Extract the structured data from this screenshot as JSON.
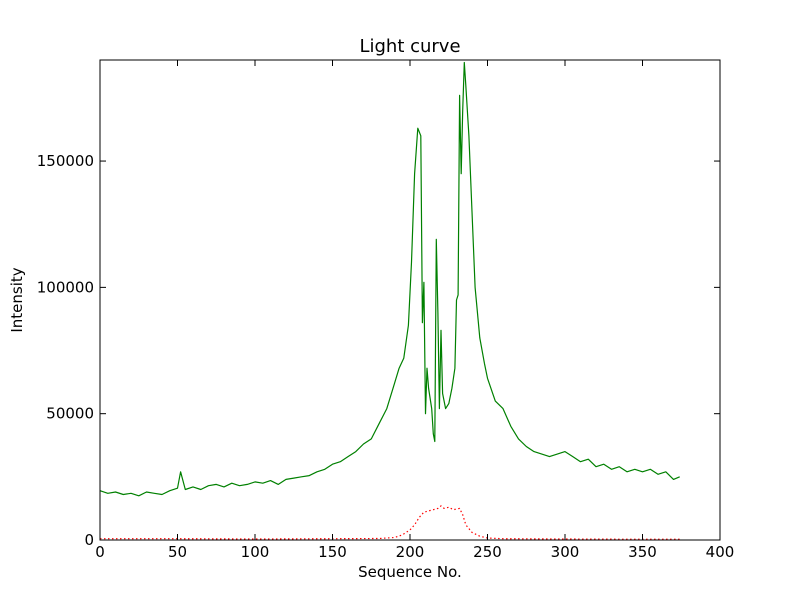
{
  "chart_data": {
    "type": "line",
    "title": "Light curve",
    "xlabel": "Sequence No.",
    "ylabel": "Intensity",
    "xlim": [
      0,
      400
    ],
    "ylim": [
      0,
      190000
    ],
    "x_ticks": [
      0,
      50,
      100,
      150,
      200,
      250,
      300,
      350,
      400
    ],
    "y_ticks": [
      0,
      50000,
      100000,
      150000
    ],
    "x_tick_labels": [
      "0",
      "50",
      "100",
      "150",
      "200",
      "250",
      "300",
      "350",
      "400"
    ],
    "y_tick_labels": [
      "0",
      "50000",
      "100000",
      "150000"
    ],
    "grid": false,
    "legend": "none",
    "series": [
      {
        "color": "#008000",
        "style": "solid",
        "points": [
          [
            0,
            19500
          ],
          [
            5,
            18500
          ],
          [
            10,
            19000
          ],
          [
            15,
            18000
          ],
          [
            20,
            18500
          ],
          [
            25,
            17500
          ],
          [
            30,
            19000
          ],
          [
            35,
            18500
          ],
          [
            40,
            18000
          ],
          [
            45,
            19500
          ],
          [
            50,
            20500
          ],
          [
            52,
            27000
          ],
          [
            55,
            20000
          ],
          [
            60,
            21000
          ],
          [
            65,
            20000
          ],
          [
            70,
            21500
          ],
          [
            75,
            22000
          ],
          [
            80,
            21000
          ],
          [
            85,
            22500
          ],
          [
            90,
            21500
          ],
          [
            95,
            22000
          ],
          [
            100,
            23000
          ],
          [
            105,
            22500
          ],
          [
            110,
            23500
          ],
          [
            115,
            22000
          ],
          [
            120,
            24000
          ],
          [
            125,
            24500
          ],
          [
            130,
            25000
          ],
          [
            135,
            25500
          ],
          [
            140,
            27000
          ],
          [
            145,
            28000
          ],
          [
            150,
            30000
          ],
          [
            155,
            31000
          ],
          [
            160,
            33000
          ],
          [
            165,
            35000
          ],
          [
            170,
            38000
          ],
          [
            175,
            40000
          ],
          [
            180,
            46000
          ],
          [
            185,
            52000
          ],
          [
            190,
            62000
          ],
          [
            193,
            68000
          ],
          [
            196,
            72000
          ],
          [
            199,
            85000
          ],
          [
            201,
            110000
          ],
          [
            203,
            145000
          ],
          [
            205,
            163000
          ],
          [
            207,
            160000
          ],
          [
            208,
            86000
          ],
          [
            209,
            102000
          ],
          [
            210,
            50000
          ],
          [
            211,
            68000
          ],
          [
            212,
            60000
          ],
          [
            214,
            52000
          ],
          [
            215,
            42000
          ],
          [
            216,
            39000
          ],
          [
            217,
            119000
          ],
          [
            218,
            90000
          ],
          [
            219,
            52000
          ],
          [
            220,
            83000
          ],
          [
            221,
            58000
          ],
          [
            223,
            52000
          ],
          [
            225,
            54000
          ],
          [
            227,
            60000
          ],
          [
            229,
            68000
          ],
          [
            230,
            95000
          ],
          [
            231,
            97000
          ],
          [
            232,
            176000
          ],
          [
            233,
            145000
          ],
          [
            234,
            170000
          ],
          [
            235,
            189000
          ],
          [
            236,
            180000
          ],
          [
            238,
            160000
          ],
          [
            240,
            130000
          ],
          [
            242,
            100000
          ],
          [
            245,
            80000
          ],
          [
            248,
            70000
          ],
          [
            250,
            64000
          ],
          [
            255,
            55000
          ],
          [
            260,
            52000
          ],
          [
            265,
            45000
          ],
          [
            270,
            40000
          ],
          [
            275,
            37000
          ],
          [
            280,
            35000
          ],
          [
            285,
            34000
          ],
          [
            290,
            33000
          ],
          [
            295,
            34000
          ],
          [
            300,
            35000
          ],
          [
            305,
            33000
          ],
          [
            310,
            31000
          ],
          [
            315,
            32000
          ],
          [
            320,
            29000
          ],
          [
            325,
            30000
          ],
          [
            330,
            28000
          ],
          [
            335,
            29000
          ],
          [
            340,
            27000
          ],
          [
            345,
            28000
          ],
          [
            350,
            27000
          ],
          [
            355,
            28000
          ],
          [
            360,
            26000
          ],
          [
            365,
            27000
          ],
          [
            370,
            24000
          ],
          [
            374,
            25000
          ]
        ]
      },
      {
        "color": "#ff0000",
        "style": "dotted",
        "points": [
          [
            0,
            500
          ],
          [
            50,
            500
          ],
          [
            100,
            400
          ],
          [
            150,
            500
          ],
          [
            180,
            600
          ],
          [
            190,
            1000
          ],
          [
            195,
            2000
          ],
          [
            200,
            4000
          ],
          [
            203,
            6000
          ],
          [
            206,
            9000
          ],
          [
            209,
            11000
          ],
          [
            212,
            11500
          ],
          [
            215,
            12000
          ],
          [
            218,
            12500
          ],
          [
            220,
            13500
          ],
          [
            222,
            12500
          ],
          [
            225,
            13000
          ],
          [
            228,
            12000
          ],
          [
            232,
            12500
          ],
          [
            234,
            10000
          ],
          [
            236,
            6000
          ],
          [
            240,
            3000
          ],
          [
            245,
            1500
          ],
          [
            250,
            800
          ],
          [
            260,
            500
          ],
          [
            300,
            400
          ],
          [
            340,
            300
          ],
          [
            374,
            300
          ]
        ]
      }
    ]
  }
}
